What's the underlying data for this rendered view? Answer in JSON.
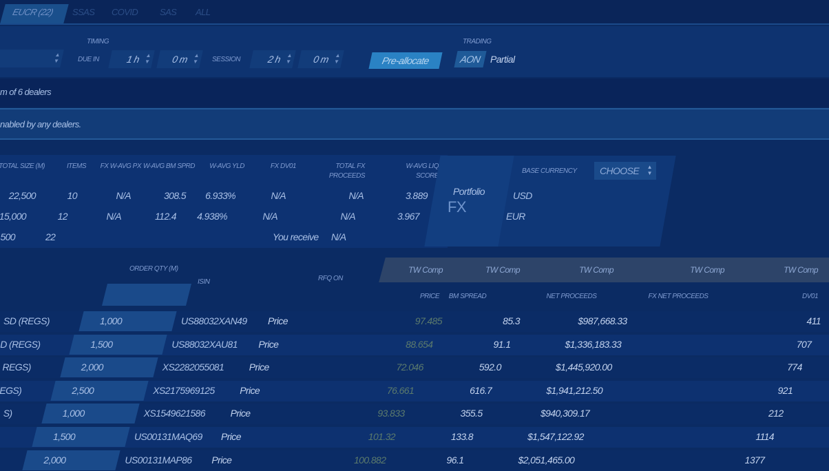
{
  "tabs": [
    {
      "label": "EUCR (22)"
    },
    {
      "label": "SSAS"
    },
    {
      "label": "COVID"
    },
    {
      "label": "SAS"
    },
    {
      "label": "ALL"
    }
  ],
  "toolbar": {
    "timing_label": "TIMING",
    "due_in_label": "DUE IN",
    "due_hours": "1 h",
    "due_minutes": "0 m",
    "session_label": "SESSION",
    "session_hours": "2 h",
    "session_minutes": "0 m",
    "preallocate_label": "Pre-allocate",
    "trading_label": "TRADING",
    "aon_label": "AON",
    "partial_label": "Partial"
  },
  "dealers_text": "m of 6 dealers",
  "notice_text": "nabled by any dealers.",
  "summary": {
    "headers": [
      "TOTAL SIZE (M)",
      "ITEMS",
      "FX W-AVG PX",
      "W-AVG BM SPRD",
      "W-AVG YLD",
      "FX DV01",
      "TOTAL FX PROCEEDS",
      "W-AVG LIQ SCORE"
    ],
    "rows": [
      [
        "22,500",
        "10",
        "N/A",
        "308.5",
        "6.933%",
        "N/A",
        "N/A",
        "3.889"
      ],
      [
        "15,000",
        "12",
        "N/A",
        "112.4",
        "4.938%",
        "N/A",
        "N/A",
        "3.967"
      ]
    ],
    "total": {
      "size": "500",
      "items": "22",
      "you_receive_label": "You receive",
      "you_receive_value": "N/A"
    }
  },
  "portfolio_fx": {
    "title": "Portfolio",
    "subtitle": "FX"
  },
  "base_currency": {
    "label": "BASE CURRENCY",
    "select_value": "CHOOSE",
    "currencies": [
      "USD",
      "EUR"
    ]
  },
  "table": {
    "order_qty_header": "ORDER QTY (M)",
    "isin_header": "ISIN",
    "rfq_on_header": "RFQ ON",
    "group_headers": [
      "TW Comp",
      "TW Comp",
      "TW Comp",
      "TW Comp",
      "TW Comp"
    ],
    "col_headers": [
      "PRICE",
      "BM SPREAD",
      "NET PROCEEDS",
      "FX NET PROCEEDS",
      "DV01"
    ],
    "rows": [
      {
        "name": "SD (REGS)",
        "qty": "1,000",
        "isin": "US88032XAN49",
        "rfq": "Price",
        "price": "97.485",
        "bm": "85.3",
        "net": "$987,668.33",
        "dv01": "411"
      },
      {
        "name": "D (REGS)",
        "qty": "1,500",
        "isin": "US88032XAU81",
        "rfq": "Price",
        "price": "88.654",
        "bm": "91.1",
        "net": "$1,336,183.33",
        "dv01": "707"
      },
      {
        "name": "REGS)",
        "qty": "2,000",
        "isin": "XS2282055081",
        "rfq": "Price",
        "price": "72.046",
        "bm": "592.0",
        "net": "$1,445,920.00",
        "dv01": "774"
      },
      {
        "name": "EGS)",
        "qty": "2,500",
        "isin": "XS2175969125",
        "rfq": "Price",
        "price": "76.661",
        "bm": "616.7",
        "net": "$1,941,212.50",
        "dv01": "921"
      },
      {
        "name": "S)",
        "qty": "1,000",
        "isin": "XS1549621586",
        "rfq": "Price",
        "price": "93.833",
        "bm": "355.5",
        "net": "$940,309.17",
        "dv01": "212"
      },
      {
        "name": "",
        "qty": "1,500",
        "isin": "US00131MAQ69",
        "rfq": "Price",
        "price": "101.32",
        "bm": "133.8",
        "net": "$1,547,122.92",
        "dv01": "1114"
      },
      {
        "name": "",
        "qty": "2,000",
        "isin": "US00131MAP86",
        "rfq": "Price",
        "price": "100.882",
        "bm": "96.1",
        "net": "$2,051,465.00",
        "dv01": "1377"
      }
    ]
  }
}
